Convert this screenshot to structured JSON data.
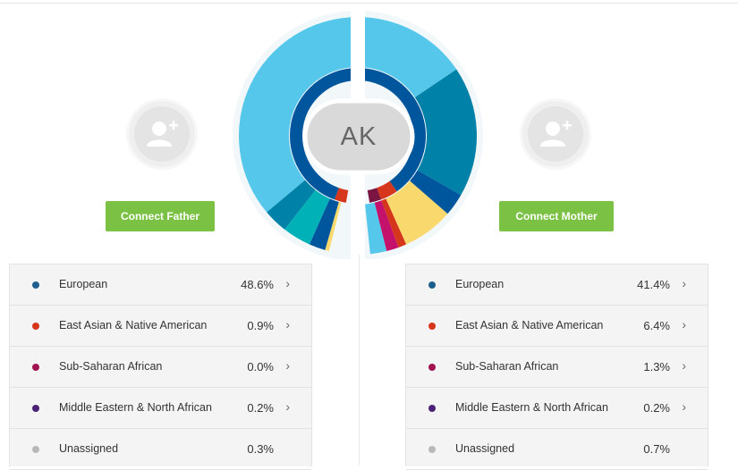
{
  "profile": {
    "initials": "AK"
  },
  "father": {
    "connect_label": "Connect Father",
    "rows": [
      {
        "name": "European",
        "pct": "48.6%",
        "color": "#1d5f8f",
        "chevron": "›"
      },
      {
        "name": "East Asian & Native American",
        "pct": "0.9%",
        "color": "#d6361c",
        "chevron": "›"
      },
      {
        "name": "Sub-Saharan African",
        "pct": "0.0%",
        "color": "#a01350",
        "chevron": "›"
      },
      {
        "name": "Middle Eastern & North African",
        "pct": "0.2%",
        "color": "#4a2175",
        "chevron": "›"
      },
      {
        "name": "Unassigned",
        "pct": "0.3%",
        "color": "#b8b8b8",
        "chevron": ""
      }
    ]
  },
  "mother": {
    "connect_label": "Connect Mother",
    "rows": [
      {
        "name": "European",
        "pct": "41.4%",
        "color": "#1d5f8f",
        "chevron": "›"
      },
      {
        "name": "East Asian & Native American",
        "pct": "6.4%",
        "color": "#d6361c",
        "chevron": "›"
      },
      {
        "name": "Sub-Saharan African",
        "pct": "1.3%",
        "color": "#a01350",
        "chevron": "›"
      },
      {
        "name": "Middle Eastern & North African",
        "pct": "0.2%",
        "color": "#4a2175",
        "chevron": "›"
      },
      {
        "name": "Unassigned",
        "pct": "0.7%",
        "color": "#b8b8b8",
        "chevron": ""
      }
    ]
  },
  "icons": {
    "father_avatar": "add-user-icon",
    "mother_avatar": "add-user-icon",
    "row_chevron": "chevron-right-icon"
  },
  "colors": {
    "button_green": "#7bc144",
    "europe_light": "#55c7ea",
    "europe_teal": "#0081a7",
    "europe_dark": "#00569c",
    "turquoise": "#00b2b7",
    "yellow": "#f9d96e",
    "red": "#d6361c",
    "magenta": "#c4116c",
    "maroon": "#7a1542",
    "initials_bg": "#d9d9d9"
  }
}
